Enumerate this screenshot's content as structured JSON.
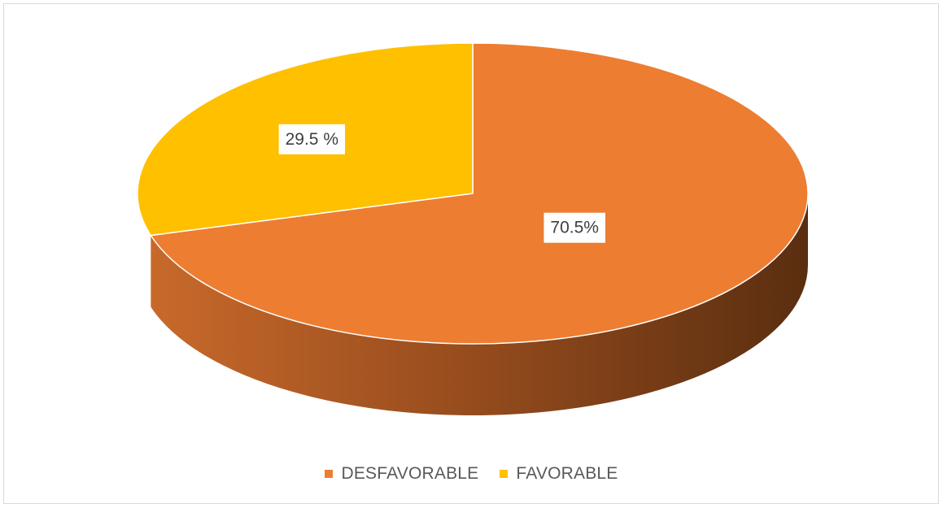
{
  "chart_data": {
    "type": "pie",
    "style": "3d",
    "title": "",
    "categories": [
      "DESFAVORABLE",
      "FAVORABLE"
    ],
    "values": [
      70.5,
      29.5
    ],
    "data_labels": [
      "70.5%",
      "29.5 %"
    ],
    "colors": [
      "#ED7D31",
      "#FFC000"
    ],
    "legend": {
      "position": "bottom"
    }
  }
}
